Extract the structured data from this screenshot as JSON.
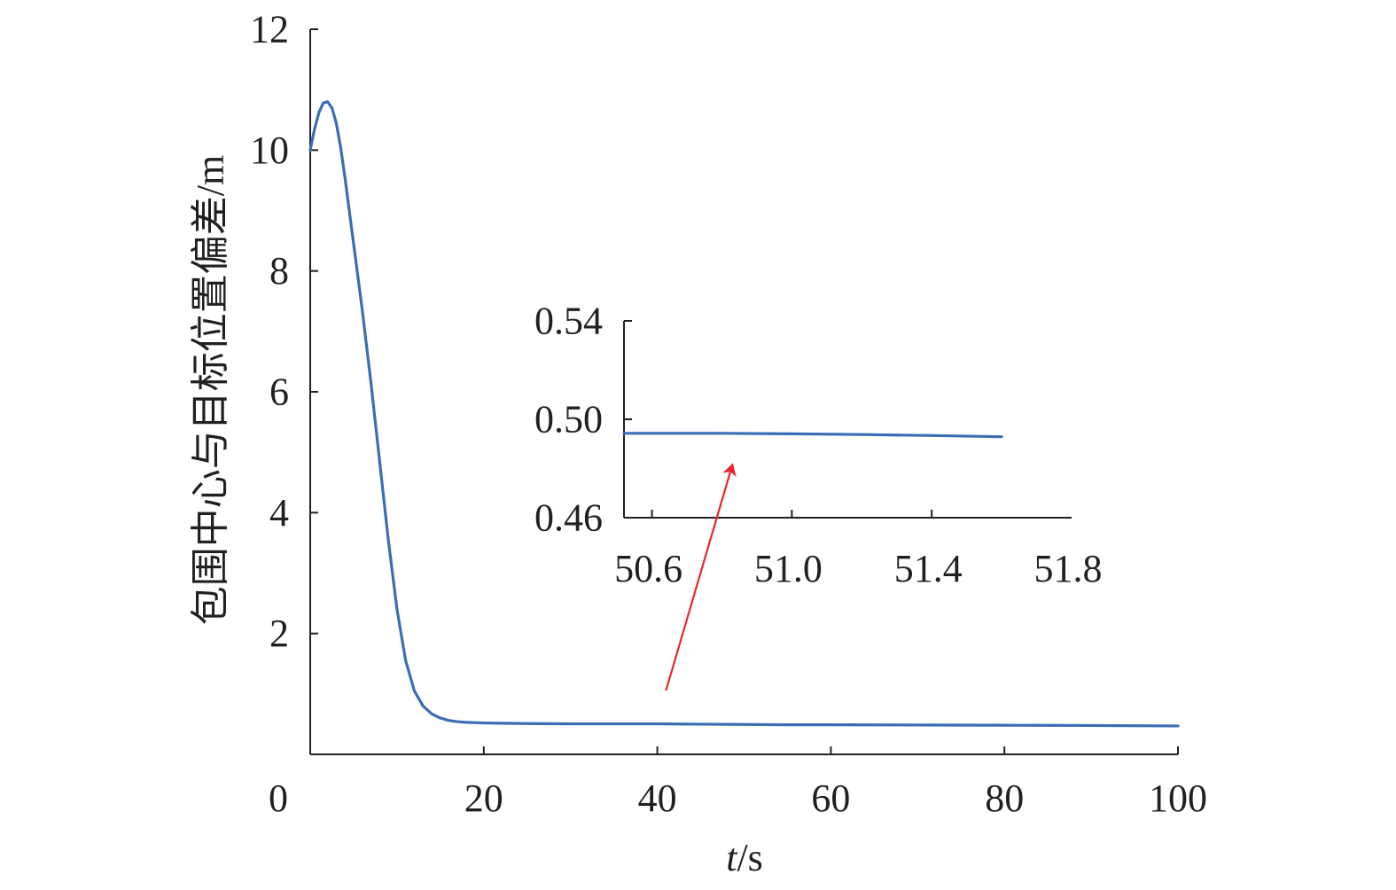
{
  "chart_data": {
    "type": "line",
    "main": {
      "xlabel_italic": "t",
      "xlabel_unit": "/s",
      "ylabel": "包围中心与目标位置偏差/m",
      "xlim": [
        0,
        100
      ],
      "ylim": [
        0,
        12
      ],
      "x_ticks": [
        0,
        20,
        40,
        60,
        80,
        100
      ],
      "x_tick_labels": [
        "0",
        "20",
        "40",
        "60",
        "80",
        "100"
      ],
      "y_ticks": [
        2,
        4,
        6,
        8,
        10,
        12
      ],
      "y_tick_labels": [
        "2",
        "4",
        "6",
        "8",
        "10",
        "12"
      ],
      "series": [
        {
          "x": [
            0,
            0.5,
            1,
            1.5,
            2,
            2.5,
            3,
            3.5,
            4,
            4.5,
            5,
            6,
            7,
            8,
            9,
            10,
            11,
            12,
            13,
            14,
            15,
            16,
            17,
            18,
            19,
            20,
            22,
            25,
            30,
            35,
            40,
            45,
            50,
            55,
            60,
            65,
            70,
            75,
            80,
            85,
            90,
            95,
            100
          ],
          "y": [
            10.0,
            10.35,
            10.62,
            10.78,
            10.8,
            10.7,
            10.45,
            10.05,
            9.55,
            9.0,
            8.45,
            7.35,
            6.15,
            4.85,
            3.55,
            2.4,
            1.55,
            1.05,
            0.8,
            0.67,
            0.6,
            0.56,
            0.54,
            0.53,
            0.525,
            0.52,
            0.515,
            0.51,
            0.505,
            0.505,
            0.505,
            0.5,
            0.495,
            0.49,
            0.49,
            0.488,
            0.486,
            0.484,
            0.482,
            0.48,
            0.478,
            0.474,
            0.47
          ]
        }
      ],
      "color": "#3a6db5"
    },
    "inset": {
      "xlim": [
        50.52,
        51.8
      ],
      "ylim": [
        0.46,
        0.54
      ],
      "x_ticks": [
        50.6,
        51.0,
        51.4,
        51.8
      ],
      "x_tick_labels": [
        "50.6",
        "51.0",
        "51.4",
        "51.8"
      ],
      "x_minor_ticks": [
        50.6,
        51.0,
        51.4
      ],
      "y_ticks": [
        0.46,
        0.5,
        0.54
      ],
      "y_tick_labels": [
        "0.46",
        "0.50",
        "0.54"
      ],
      "series": [
        {
          "x": [
            50.52,
            50.8,
            51.0,
            51.2,
            51.4,
            51.6
          ],
          "y": [
            0.4943,
            0.4943,
            0.4941,
            0.4938,
            0.4934,
            0.4929
          ]
        }
      ],
      "color": "#3a6db5"
    },
    "annotation": {
      "type": "arrow",
      "from": [
        41,
        0.5
      ],
      "to_inset": [
        50.83,
        0.4815
      ],
      "color": "#e8262a"
    }
  }
}
